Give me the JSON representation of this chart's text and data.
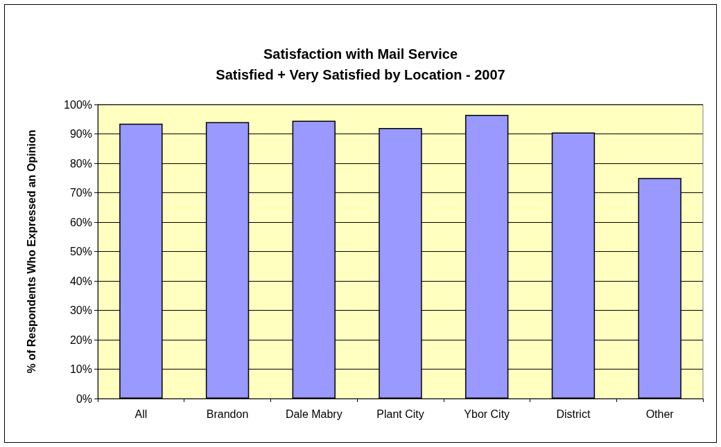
{
  "chart_data": {
    "type": "bar",
    "title": "Satisfaction with Mail Service",
    "subtitle": "Satisfied + Very Satisfied by Location - 2007",
    "ylabel": "% of Respondents Who Expressed an Opinion",
    "categories": [
      "All",
      "Brandon",
      "Dale Mabry",
      "Plant City",
      "Ybor City",
      "District",
      "Other"
    ],
    "values": [
      93.5,
      94,
      94.5,
      92,
      96.5,
      90.5,
      75
    ],
    "color": "#9999ff",
    "ylim": [
      0,
      100
    ],
    "yticks": [
      {
        "value": 0,
        "label": "0%"
      },
      {
        "value": 10,
        "label": "10%"
      },
      {
        "value": 20,
        "label": "20%"
      },
      {
        "value": 30,
        "label": "30%"
      },
      {
        "value": 40,
        "label": "40%"
      },
      {
        "value": 50,
        "label": "50%"
      },
      {
        "value": 60,
        "label": "60%"
      },
      {
        "value": 70,
        "label": "70%"
      },
      {
        "value": 80,
        "label": "80%"
      },
      {
        "value": 90,
        "label": "90%"
      },
      {
        "value": 100,
        "label": "100%"
      }
    ],
    "grid": "y"
  }
}
